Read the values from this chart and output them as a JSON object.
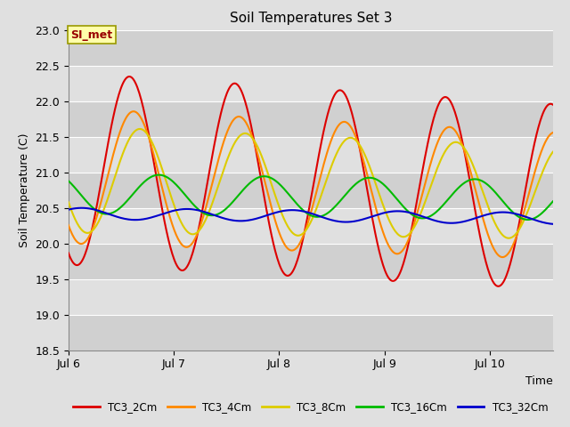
{
  "title": "Soil Temperatures Set 3",
  "xlabel": "Time",
  "ylabel": "Soil Temperature (C)",
  "ylim": [
    18.5,
    23.0
  ],
  "yticks": [
    18.5,
    19.0,
    19.5,
    20.0,
    20.5,
    21.0,
    21.5,
    22.0,
    22.5,
    23.0
  ],
  "xtick_labels": [
    "Jul 6",
    "Jul 7",
    "Jul 8",
    "Jul 9",
    "Jul 10"
  ],
  "xtick_pos": [
    0,
    1,
    2,
    3,
    4
  ],
  "xlim": [
    0,
    4.6
  ],
  "bg_color": "#e0e0e0",
  "band_colors": [
    "#d0d0d0",
    "#e0e0e0"
  ],
  "series": {
    "TC3_2Cm": {
      "color": "#dd0000",
      "lw": 1.5
    },
    "TC3_4Cm": {
      "color": "#ff8800",
      "lw": 1.5
    },
    "TC3_8Cm": {
      "color": "#ddcc00",
      "lw": 1.5
    },
    "TC3_16Cm": {
      "color": "#00bb00",
      "lw": 1.5
    },
    "TC3_32Cm": {
      "color": "#0000cc",
      "lw": 1.5
    }
  },
  "annotation_text": "SI_met",
  "annotation_color": "#990000",
  "annotation_bg": "#ffffaa",
  "annotation_border": "#999900"
}
